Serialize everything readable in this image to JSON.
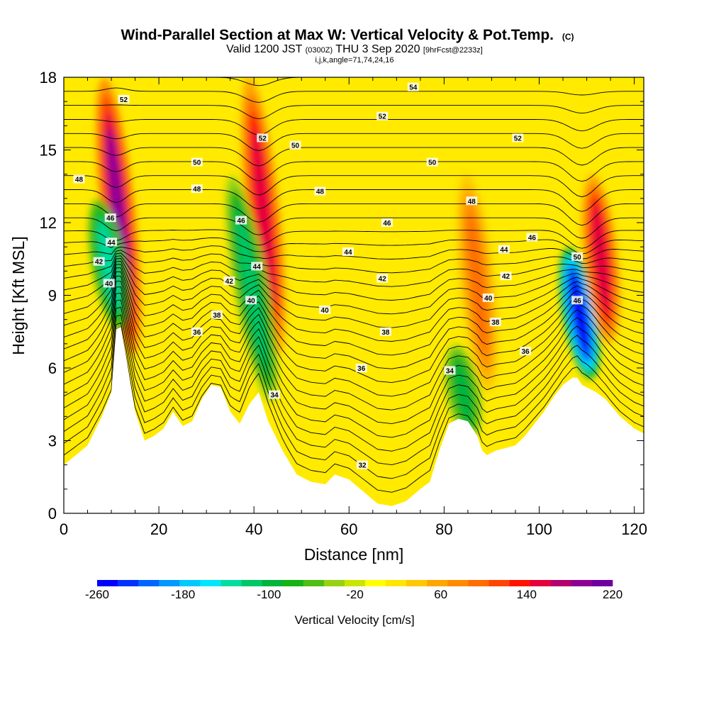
{
  "chart_data": {
    "type": "heatmap",
    "title": "Wind-Parallel Section at Max W: Vertical Velocity & Pot.Temp.",
    "title_mark": "(C)",
    "subtitle_parts": [
      "Valid 1200 JST ",
      "(0300Z)",
      " THU 3 Sep 2020 ",
      "[9hrFcst@2233z]"
    ],
    "subtitle2": "i,j,k,angle=71,74,24,16",
    "xlabel": "Distance [nm]",
    "ylabel": "Height [Kft MSL]",
    "xlim": [
      0,
      122
    ],
    "ylim": [
      0,
      18
    ],
    "x_ticks": [
      "0",
      "20",
      "40",
      "60",
      "80",
      "100",
      "120"
    ],
    "y_ticks": [
      "0",
      "3",
      "6",
      "9",
      "12",
      "15",
      "18"
    ],
    "colorbar": {
      "label": "Vertical Velocity [cm/s]",
      "min": -260,
      "max": 220,
      "step": 20,
      "tick_labels": [
        "-260",
        "-180",
        "-100",
        "-20",
        "60",
        "140",
        "220"
      ],
      "colors": [
        "#0000ff",
        "#0033ff",
        "#0066ff",
        "#0099ff",
        "#00c8ff",
        "#00e6ff",
        "#00dca0",
        "#00c864",
        "#00b43c",
        "#14b414",
        "#50be14",
        "#96d214",
        "#c8e600",
        "#ffff00",
        "#ffe600",
        "#ffc800",
        "#ffa500",
        "#ff8c00",
        "#ff6e00",
        "#ff4600",
        "#ff1400",
        "#e6003c",
        "#b4006e",
        "#8c0096",
        "#6e00a0"
      ]
    },
    "terrain_height_kft": {
      "x": [
        0,
        5,
        8,
        10,
        11,
        12,
        13,
        15,
        17,
        19,
        21,
        23,
        25,
        27,
        29,
        31,
        33,
        35,
        37,
        39,
        41,
        43,
        46,
        49,
        52,
        55,
        57,
        60,
        63,
        66,
        69,
        72,
        75,
        77,
        79,
        81,
        83,
        85,
        87,
        88,
        89,
        91,
        93,
        95,
        97,
        99,
        101,
        103,
        105,
        107,
        108,
        109,
        110,
        112,
        114,
        117,
        120,
        122
      ],
      "y": [
        2.0,
        2.8,
        4.0,
        5.0,
        7.6,
        7.7,
        6.6,
        4.2,
        3.0,
        3.2,
        3.5,
        4.2,
        3.6,
        3.8,
        4.7,
        5.3,
        5.2,
        4.2,
        3.7,
        4.5,
        5.0,
        3.8,
        2.6,
        1.6,
        1.3,
        1.2,
        1.6,
        1.4,
        0.9,
        0.4,
        0.3,
        0.5,
        1.0,
        1.3,
        2.6,
        3.7,
        3.9,
        3.8,
        3.2,
        2.6,
        2.4,
        2.6,
        2.7,
        2.8,
        3.2,
        3.7,
        4.2,
        4.8,
        5.3,
        5.6,
        5.6,
        5.3,
        5.2,
        5.0,
        4.7,
        4.0,
        3.5,
        3.3
      ]
    },
    "vertical_velocity_features": [
      {
        "x": 11.5,
        "y_range": [
          6.5,
          18
        ],
        "peak_cms": 190
      },
      {
        "x": 9.5,
        "y_range": [
          7.5,
          13
        ],
        "peak_cms": -140
      },
      {
        "x": 42,
        "y_range": [
          6.5,
          18
        ],
        "peak_cms": 160
      },
      {
        "x": 39.5,
        "y_range": [
          4.5,
          14
        ],
        "peak_cms": -110
      },
      {
        "x": 87,
        "y_range": [
          5,
          14
        ],
        "peak_cms": 90
      },
      {
        "x": 84,
        "y_range": [
          3,
          7
        ],
        "peak_cms": -100
      },
      {
        "x": 108.5,
        "y_range": [
          5.5,
          11
        ],
        "peak_cms": -250
      },
      {
        "x": 113,
        "y_range": [
          7,
          14
        ],
        "peak_cms": 150
      }
    ],
    "potential_temperature_contour_labels": [
      {
        "text": "52",
        "x": 12.6,
        "y": 17.1
      },
      {
        "text": "46",
        "x": 9.8,
        "y": 12.2
      },
      {
        "text": "44",
        "x": 10.0,
        "y": 11.2
      },
      {
        "text": "42",
        "x": 7.4,
        "y": 10.4
      },
      {
        "text": "40",
        "x": 9.5,
        "y": 9.5
      },
      {
        "text": "48",
        "x": 3.2,
        "y": 13.8
      },
      {
        "text": "50",
        "x": 28.0,
        "y": 14.5
      },
      {
        "text": "48",
        "x": 28.0,
        "y": 13.4
      },
      {
        "text": "46",
        "x": 37.3,
        "y": 12.1
      },
      {
        "text": "44",
        "x": 40.6,
        "y": 10.2
      },
      {
        "text": "42",
        "x": 34.8,
        "y": 9.6
      },
      {
        "text": "40",
        "x": 39.4,
        "y": 8.8
      },
      {
        "text": "38",
        "x": 32.2,
        "y": 8.2
      },
      {
        "text": "36",
        "x": 28.0,
        "y": 7.5
      },
      {
        "text": "34",
        "x": 44.3,
        "y": 4.9
      },
      {
        "text": "52",
        "x": 41.8,
        "y": 15.5
      },
      {
        "text": "50",
        "x": 48.7,
        "y": 15.2
      },
      {
        "text": "48",
        "x": 53.9,
        "y": 13.3
      },
      {
        "text": "46",
        "x": 68.0,
        "y": 12.0
      },
      {
        "text": "44",
        "x": 59.8,
        "y": 10.8
      },
      {
        "text": "42",
        "x": 67.0,
        "y": 9.7
      },
      {
        "text": "40",
        "x": 54.9,
        "y": 8.4
      },
      {
        "text": "38",
        "x": 67.7,
        "y": 7.5
      },
      {
        "text": "36",
        "x": 62.6,
        "y": 6.0
      },
      {
        "text": "32",
        "x": 62.8,
        "y": 2.0
      },
      {
        "text": "34",
        "x": 81.2,
        "y": 5.9
      },
      {
        "text": "54",
        "x": 73.5,
        "y": 17.6
      },
      {
        "text": "52",
        "x": 67.0,
        "y": 16.4
      },
      {
        "text": "50",
        "x": 77.5,
        "y": 14.5
      },
      {
        "text": "52",
        "x": 95.5,
        "y": 15.5
      },
      {
        "text": "48",
        "x": 85.8,
        "y": 12.9
      },
      {
        "text": "46",
        "x": 98.5,
        "y": 11.4
      },
      {
        "text": "44",
        "x": 92.6,
        "y": 10.9
      },
      {
        "text": "42",
        "x": 93.0,
        "y": 9.8
      },
      {
        "text": "40",
        "x": 89.3,
        "y": 8.9
      },
      {
        "text": "38",
        "x": 90.8,
        "y": 7.9
      },
      {
        "text": "36",
        "x": 97.1,
        "y": 6.7
      },
      {
        "text": "50",
        "x": 108.0,
        "y": 10.6
      },
      {
        "text": "46",
        "x": 108.0,
        "y": 8.8
      }
    ]
  }
}
